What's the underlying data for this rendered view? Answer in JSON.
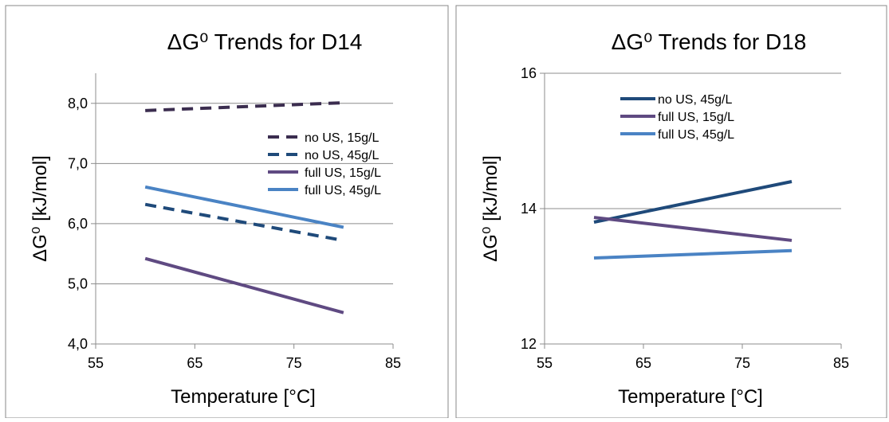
{
  "chart_data": [
    {
      "type": "line",
      "title": "ΔG⁰ Trends for D14",
      "xlabel": "Temperature [°C]",
      "ylabel": "ΔG⁰ [kJ/mol]",
      "xlim": [
        55,
        85
      ],
      "ylim": [
        4.0,
        8.5
      ],
      "x_ticks": [
        55,
        65,
        75,
        85
      ],
      "y_ticks": [
        4.0,
        5.0,
        6.0,
        7.0,
        8.0
      ],
      "y_tick_labels": [
        "4,0",
        "5,0",
        "6,0",
        "7,0",
        "8,0"
      ],
      "grid": true,
      "legend_position": "right",
      "series": [
        {
          "name": "no US, 15g/L",
          "color": "#3b2d4f",
          "dash": true,
          "x": [
            60,
            80
          ],
          "y": [
            7.88,
            8.01
          ]
        },
        {
          "name": "no US, 45g/L",
          "color": "#1f4a7a",
          "dash": true,
          "x": [
            60,
            80
          ],
          "y": [
            6.32,
            5.72
          ]
        },
        {
          "name": "full US, 15g/L",
          "color": "#5f4a82",
          "dash": false,
          "x": [
            60,
            80
          ],
          "y": [
            5.42,
            4.52
          ]
        },
        {
          "name": "full US, 45g/L",
          "color": "#4a83c4",
          "dash": false,
          "x": [
            60,
            80
          ],
          "y": [
            6.61,
            5.94
          ]
        }
      ]
    },
    {
      "type": "line",
      "title": "ΔG⁰ Trends for D18",
      "xlabel": "Temperature [°C]",
      "ylabel": "ΔG⁰ [kJ/mol]",
      "xlim": [
        55,
        85
      ],
      "ylim": [
        12,
        16
      ],
      "x_ticks": [
        55,
        65,
        75,
        85
      ],
      "y_ticks": [
        12,
        14,
        16
      ],
      "y_tick_labels": [
        "12",
        "14",
        "16"
      ],
      "grid": true,
      "legend_position": "top",
      "series": [
        {
          "name": "no US, 45g/L",
          "color": "#1f4a7a",
          "dash": false,
          "x": [
            60,
            80
          ],
          "y": [
            13.8,
            14.4
          ]
        },
        {
          "name": "full US, 15g/L",
          "color": "#5f4a82",
          "dash": false,
          "x": [
            60,
            80
          ],
          "y": [
            13.87,
            13.53
          ]
        },
        {
          "name": "full US, 45g/L",
          "color": "#4a83c4",
          "dash": false,
          "x": [
            60,
            80
          ],
          "y": [
            13.27,
            13.38
          ]
        }
      ]
    }
  ]
}
